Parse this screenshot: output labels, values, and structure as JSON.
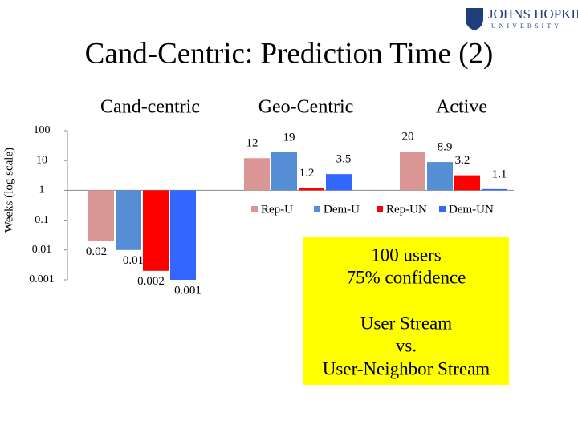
{
  "logo": {
    "name": "JOHNS HOPKINS",
    "subname": "UNIVERSITY"
  },
  "chart_data": {
    "type": "bar",
    "title": "Cand-Centric: Prediction Time (2)",
    "y_label": "Weeks (log scale)",
    "categories": [
      "Cand-centric",
      "Geo-Centric",
      "Active"
    ],
    "series": [
      {
        "name": "Rep-U",
        "color": "#d99694",
        "values": [
          0.02,
          12,
          20
        ]
      },
      {
        "name": "Dem-U",
        "color": "#558ed5",
        "values": [
          0.01,
          19,
          8.9
        ]
      },
      {
        "name": "Rep-UN",
        "color": "#ff0000",
        "values": [
          0.002,
          1.2,
          3.2
        ]
      },
      {
        "name": "Dem-UN",
        "color": "#3366ff",
        "values": [
          0.001,
          3.5,
          1.1
        ]
      }
    ],
    "log_scale": true,
    "baseline": 1,
    "ylim": [
      0.001,
      100
    ],
    "yticks": [
      100,
      10,
      1,
      0.1,
      0.01,
      0.001
    ]
  },
  "note": {
    "lines": [
      "100 users",
      "75% confidence",
      "User Stream",
      "vs.",
      "User-Neighbor Stream"
    ],
    "color": "#ffff00"
  }
}
